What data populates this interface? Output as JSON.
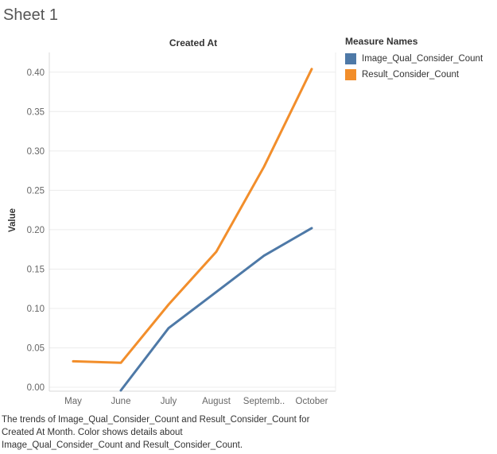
{
  "sheet": {
    "title": "Sheet 1"
  },
  "chart_data": {
    "type": "line",
    "title": "Created At",
    "xlabel": "",
    "ylabel": "Value",
    "categories": [
      "May",
      "June",
      "July",
      "August",
      "Septemb..",
      "October"
    ],
    "ylim": [
      -0.005,
      0.425
    ],
    "yticks": [
      0.0,
      0.05,
      0.1,
      0.15,
      0.2,
      0.25,
      0.3,
      0.35,
      0.4
    ],
    "ytick_labels": [
      "0.00",
      "0.05",
      "0.10",
      "0.15",
      "0.20",
      "0.25",
      "0.30",
      "0.35",
      "0.40"
    ],
    "grid": true,
    "legend_position": "right",
    "series": [
      {
        "name": "Image_Qual_Consider_Count",
        "color": "#4e79a7",
        "values": [
          null,
          -0.004,
          0.075,
          0.121,
          0.167,
          0.202
        ]
      },
      {
        "name": "Result_Consider_Count",
        "color": "#f28e2b",
        "values": [
          0.033,
          0.031,
          0.105,
          0.172,
          0.28,
          0.404
        ]
      }
    ]
  },
  "legend": {
    "title": "Measure Names"
  },
  "caption": {
    "line1": "The trends of Image_Qual_Consider_Count and Result_Consider_Count for",
    "line2": "Created At Month.  Color shows details about",
    "line3": "Image_Qual_Consider_Count and Result_Consider_Count."
  }
}
